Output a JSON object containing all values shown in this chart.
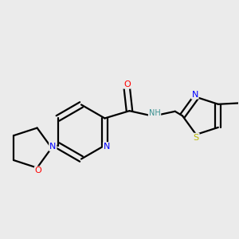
{
  "bg_color": "#ebebeb",
  "atom_colors": {
    "C": "#000000",
    "N": "#0000ff",
    "O": "#ff0000",
    "S": "#b8b800",
    "NH": "#3a9090"
  },
  "bond_color": "#000000",
  "bond_width": 1.6,
  "dbo": 0.012
}
